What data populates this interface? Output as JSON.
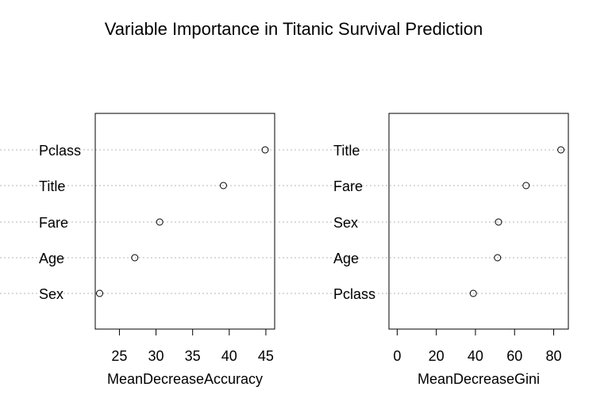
{
  "title": "Variable Importance in Titanic Survival Prediction",
  "chart_data": [
    {
      "type": "scatter",
      "subtype": "dotchart",
      "xlabel": "MeanDecreaseAccuracy",
      "categories": [
        "Pclass",
        "Title",
        "Fare",
        "Age",
        "Sex"
      ],
      "values": [
        44.9,
        39.2,
        30.5,
        27.1,
        22.3
      ],
      "xlim": [
        21.7,
        46.2
      ],
      "xticks": [
        25,
        30,
        35,
        40,
        45
      ],
      "grid": "horizontal dotted"
    },
    {
      "type": "scatter",
      "subtype": "dotchart",
      "xlabel": "MeanDecreaseGini",
      "categories": [
        "Title",
        "Fare",
        "Sex",
        "Age",
        "Pclass"
      ],
      "values": [
        83.7,
        65.9,
        51.8,
        51.3,
        38.9
      ],
      "xlim": [
        -4.2,
        87.5
      ],
      "xticks": [
        0,
        20,
        40,
        60,
        80
      ],
      "grid": "horizontal dotted"
    }
  ]
}
